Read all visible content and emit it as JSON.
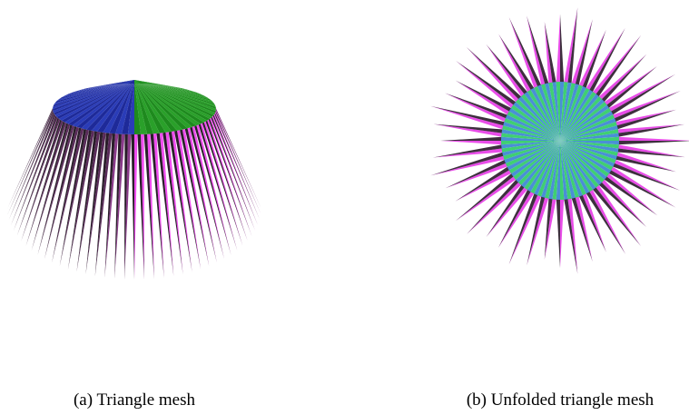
{
  "figures": [
    {
      "caption": "(a) Triangle mesh"
    },
    {
      "caption": "(b) Unfolded triangle mesh"
    }
  ]
}
